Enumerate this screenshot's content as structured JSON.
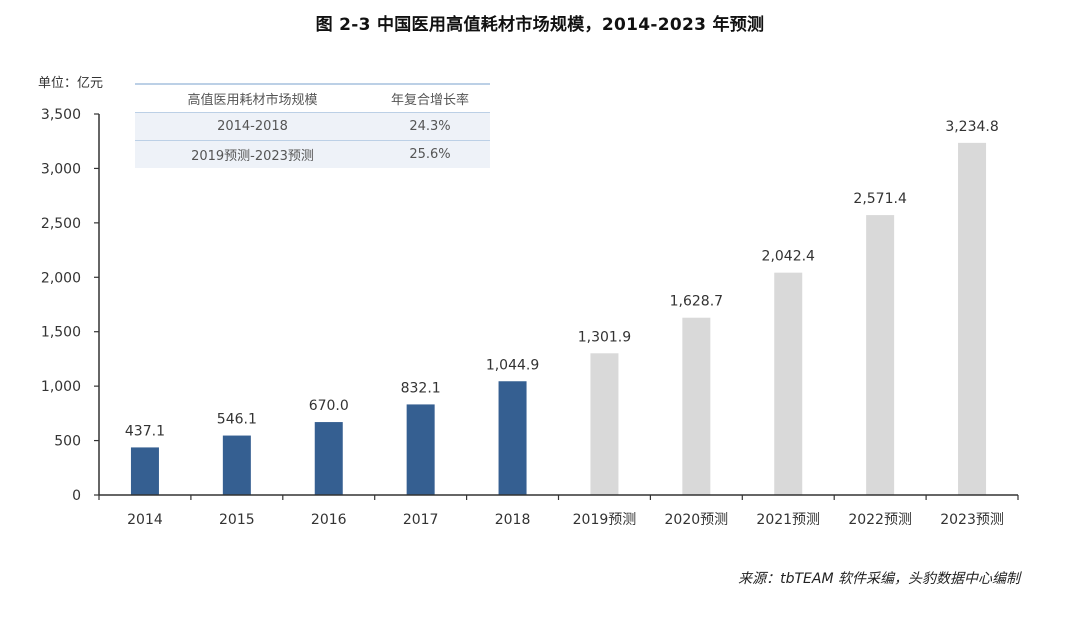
{
  "title": "图 2-3  中国医用高值耗材市场规模，2014-2023 年预测",
  "unit_label": "单位：亿元",
  "source": "来源：tbTEAM 软件采编，头豹数据中心编制",
  "cagr_table": {
    "headers": [
      "高值医用耗材市场规模",
      "年复合增长率"
    ],
    "rows": [
      [
        "2014-2018",
        "24.3%"
      ],
      [
        "2019预测-2023预测",
        "25.6%"
      ]
    ]
  },
  "colors": {
    "actual": "#355f91",
    "forecast": "#d9d9d9",
    "axis": "#333333",
    "table_line": "#bcd0e6",
    "table_fill": "#eef2f8"
  },
  "chart_data": {
    "type": "bar",
    "title": "图 2-3  中国医用高值耗材市场规模，2014-2023 年预测",
    "xlabel": "",
    "ylabel": "单位：亿元",
    "ylim": [
      0,
      3500
    ],
    "yticks": [
      0,
      500,
      1000,
      1500,
      2000,
      2500,
      3000,
      3500
    ],
    "ytick_labels": [
      "0",
      "500",
      "1,000",
      "1,500",
      "2,000",
      "2,500",
      "3,000",
      "3,500"
    ],
    "grid": false,
    "categories": [
      "2014",
      "2015",
      "2016",
      "2017",
      "2018",
      "2019预测",
      "2020预测",
      "2021预测",
      "2022预测",
      "2023预测"
    ],
    "values": [
      437.1,
      546.1,
      670.0,
      832.1,
      1044.9,
      1301.9,
      1628.7,
      2042.4,
      2571.4,
      3234.8
    ],
    "value_labels": [
      "437.1",
      "546.1",
      "670.0",
      "832.1",
      "1,044.9",
      "1,301.9",
      "1,628.7",
      "2,042.4",
      "2,571.4",
      "3,234.8"
    ],
    "kind": [
      "actual",
      "actual",
      "actual",
      "actual",
      "actual",
      "forecast",
      "forecast",
      "forecast",
      "forecast",
      "forecast"
    ]
  }
}
